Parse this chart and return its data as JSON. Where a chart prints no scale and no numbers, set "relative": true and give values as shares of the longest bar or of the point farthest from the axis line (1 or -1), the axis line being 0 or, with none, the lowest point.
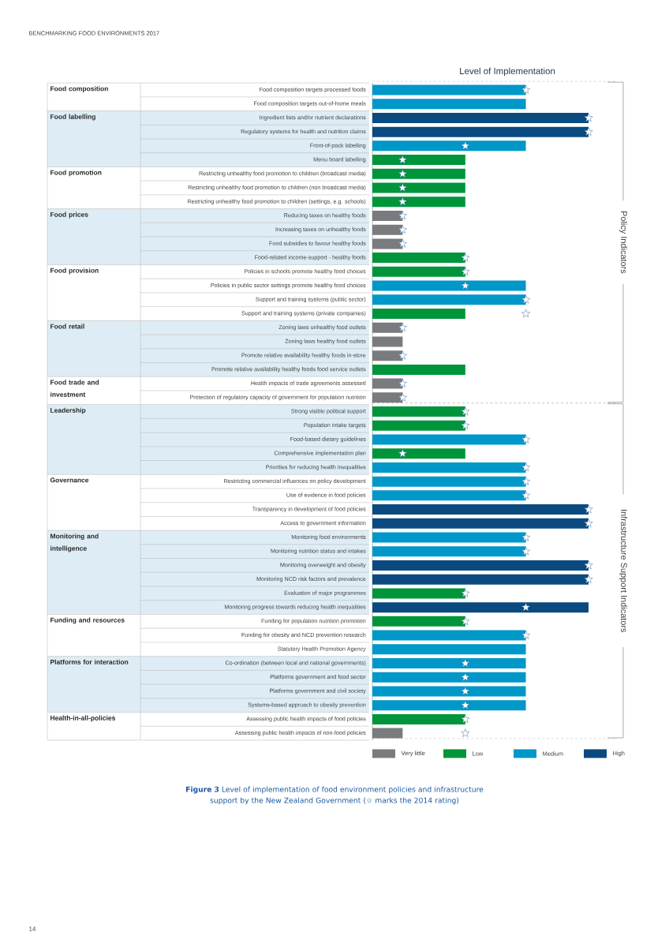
{
  "chart_data": {
    "type": "bar",
    "orientation": "horizontal",
    "relative": true,
    "title": "**Figure 3** Level of implementation of food environment policies and infrastructure support by the New Zealand Government (☆ marks the 2014 rating)",
    "xlabel": "Level of Implementation",
    "legend": "bottom",
    "categories": [
      "Food composition targets processed foods",
      "Food composition targets out-of-home meals",
      "Ingredient lists and/or nutrient declarations",
      "Regulatory systems for  health and nutrition claims",
      "Front-of-pack labelling",
      "Menu board labelling",
      "Restricting unhealthy food promotion to children (broadcast media)",
      "Restricting unhealthy food promotion to children (non broadcast media)",
      "Restricting unhealthy food promotion to children (settings, e.g. schools)",
      "Reducing taxes on healthy foods",
      "Increasing taxes on unhealthy foods",
      "Food subsidies to favour healthy foods",
      "Food-related income-support - healthy foods",
      "Policies in schools promote healthy food choices",
      "Policies in public sector settings promote healthy food choices",
      "Support and training systems (public sector)",
      "Support and training systems (private companies)",
      "Zoning laws unhealthy food outlets",
      "Zoning laws healthy food outlets",
      "Promote relative availability healthy foods in-store",
      "Promote relative availability healthy foods food service outlets",
      "Health impacts of trade agreements assessed",
      "Protection of regulatory capacity of government for population nutrition",
      "Strong visible political support",
      "Population intake targets",
      "Food-based dietary guidelines",
      "Comprehensive implementation plan",
      "Priorities for reducing health inequalities",
      "Restricting commercial influences on policy development",
      "Use of evidence in food policies",
      "Transparency in development of food policies",
      "Access to government information",
      "Monitoring food environments",
      "Monitoring nutrition status and intakes",
      "Monitoring overweight and obesity",
      "Monitoring NCD risk factors and prevalence",
      "Evaluation of major programmes",
      "Monitoring progress towards reducing health inequalities",
      "Funding for population nutrition promotion",
      "Funding for obesity and NCD prevention research",
      "Statutory Health Promotion Agency",
      "Co-ordination  (between local and national governments)",
      "Platforms government and food sector",
      "Platforms government and civil society",
      "Systems-based approach to obesity prevention",
      "Assessing public health impacts of food policies",
      "Assessing public health impacts of non-food policies"
    ],
    "series": [
      {
        "name": "Very little",
        "color": "#7a7b7e",
        "values": [
          null,
          null,
          null,
          null,
          null,
          null,
          null,
          null,
          null,
          0.14,
          0.14,
          0.14,
          null,
          null,
          null,
          null,
          null,
          0.14,
          0.14,
          0.14,
          null,
          0.14,
          0.14,
          null,
          null,
          null,
          null,
          null,
          null,
          null,
          null,
          null,
          null,
          null,
          null,
          null,
          null,
          null,
          null,
          null,
          null,
          null,
          null,
          null,
          null,
          null,
          0.14
        ]
      },
      {
        "name": "Low",
        "color": "#00953a",
        "values": [
          null,
          null,
          null,
          null,
          null,
          0.43,
          0.43,
          0.43,
          0.43,
          null,
          null,
          null,
          0.43,
          0.43,
          null,
          null,
          0.43,
          null,
          null,
          null,
          0.43,
          null,
          null,
          0.43,
          0.43,
          null,
          0.43,
          null,
          null,
          null,
          null,
          null,
          null,
          null,
          null,
          null,
          0.43,
          null,
          0.43,
          null,
          null,
          null,
          null,
          null,
          null,
          0.43,
          null
        ]
      },
      {
        "name": "Medium",
        "color": "#0097c9",
        "values": [
          0.71,
          0.71,
          null,
          null,
          0.71,
          null,
          null,
          null,
          null,
          null,
          null,
          null,
          null,
          null,
          0.71,
          0.71,
          null,
          null,
          null,
          null,
          null,
          null,
          null,
          null,
          null,
          0.71,
          null,
          0.71,
          0.71,
          0.71,
          null,
          null,
          0.71,
          0.71,
          null,
          null,
          null,
          null,
          null,
          0.71,
          0.71,
          0.71,
          0.71,
          0.71,
          0.71,
          null,
          null
        ]
      },
      {
        "name": "High",
        "color": "#0a4a80",
        "values": [
          null,
          null,
          1,
          1,
          null,
          null,
          null,
          null,
          null,
          null,
          null,
          null,
          null,
          null,
          null,
          null,
          null,
          null,
          null,
          null,
          null,
          null,
          null,
          null,
          null,
          null,
          null,
          null,
          null,
          null,
          1,
          1,
          null,
          null,
          1,
          1,
          null,
          1,
          null,
          null,
          null,
          null,
          null,
          null,
          null,
          null,
          null
        ]
      },
      {
        "type": "scatter",
        "marker": "star",
        "color": "#3a6ea5",
        "values": [
          0.71,
          null,
          1,
          1,
          0.43,
          0.14,
          0.14,
          0.14,
          0.14,
          0.14,
          0.14,
          0.14,
          0.43,
          0.43,
          0.43,
          0.71,
          0.71,
          0.14,
          null,
          0.14,
          null,
          0.14,
          0.14,
          0.43,
          0.43,
          0.71,
          0.14,
          0.71,
          0.71,
          0.71,
          1,
          1,
          0.71,
          0.71,
          1,
          1,
          0.43,
          0.71,
          0.43,
          0.71,
          null,
          0.43,
          0.43,
          0.43,
          0.43,
          0.43,
          0.43
        ]
      }
    ],
    "annotations": [
      "BENCHMARKING FOOD ENVIRONMENTS 2017",
      "Food composition",
      "Food labelling",
      "Food promotion",
      "Food prices",
      "Food provision",
      "Food retail",
      "Food trade and investment",
      "Leadership",
      "Governance",
      "Monitoring and intelligence",
      "Funding  and resources",
      "Platforms for interaction",
      "Health-in-all-policies",
      "Policy Indicators",
      "Infrastructure Support Indicators",
      "14"
    ]
  }
}
